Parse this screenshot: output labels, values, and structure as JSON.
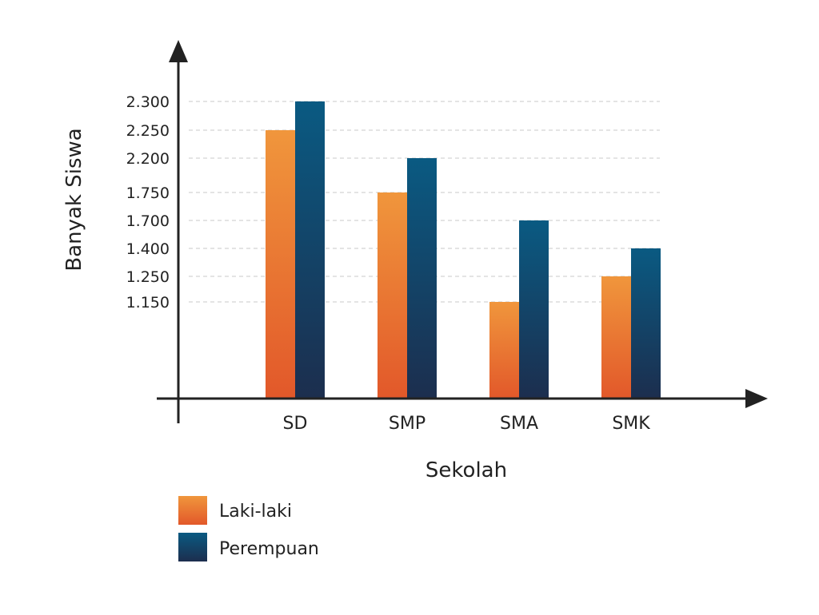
{
  "chart_data": {
    "type": "bar",
    "xlabel": "Sekolah",
    "ylabel": "Banyak Siswa",
    "categories": [
      "SD",
      "SMP",
      "SMA",
      "SMK"
    ],
    "series": [
      {
        "name": "Laki-laki",
        "values": [
          2250,
          1750,
          1150,
          1250
        ],
        "color_top": "#f0963c",
        "color_bottom": "#e2582a"
      },
      {
        "name": "Perempuan",
        "values": [
          2300,
          2200,
          1700,
          1400
        ],
        "color_top": "#0a5a82",
        "color_bottom": "#1c2e4e"
      }
    ],
    "y_ticks": [
      {
        "value": 1150,
        "label": "1.150"
      },
      {
        "value": 1250,
        "label": "1.250"
      },
      {
        "value": 1400,
        "label": "1.400"
      },
      {
        "value": 1700,
        "label": "1.700"
      },
      {
        "value": 1750,
        "label": "1.750"
      },
      {
        "value": 2200,
        "label": "2.200"
      },
      {
        "value": 2250,
        "label": "2.250"
      },
      {
        "value": 2300,
        "label": "2.300"
      }
    ],
    "y_scale": "non-linear",
    "grid": "dashed horizontal at tick values",
    "legend_position": "bottom-left"
  }
}
